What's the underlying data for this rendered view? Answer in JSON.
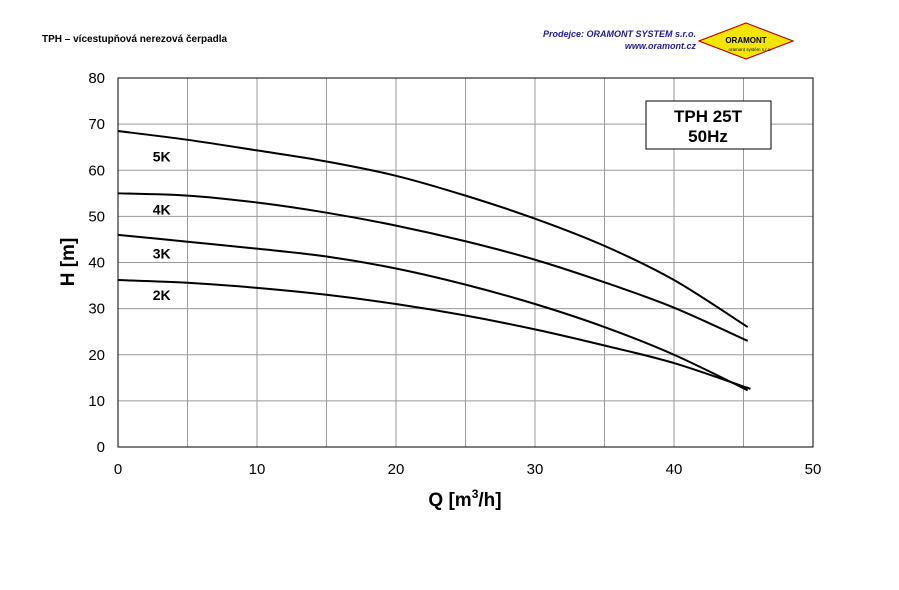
{
  "header": {
    "doc_title": "TPH – vícestupňová nerezová čerpadla",
    "dealer_prefix": "Prodejce:",
    "dealer_name": "ORAMONT SYSTEM s.r.o.",
    "dealer_web": "www.oramont.cz",
    "logo_text": "ORAMONT",
    "logo_subtext": "oramont systém s.r.o.",
    "logo_color": "#f2e600"
  },
  "chart_data": {
    "type": "line",
    "xlabel_main": "Q [m",
    "xlabel_sup": "3",
    "xlabel_tail": "/h]",
    "ylabel": "H [m]",
    "xlim": [
      0,
      50
    ],
    "ylim": [
      0,
      80
    ],
    "x_ticks": [
      0,
      10,
      20,
      30,
      40,
      50
    ],
    "y_ticks": [
      0,
      10,
      20,
      30,
      40,
      50,
      60,
      70,
      80
    ],
    "grid": true,
    "box_lines": [
      "TPH 25T",
      "50Hz"
    ],
    "series": [
      {
        "name": "5K",
        "label_at": [
          2.5,
          63
        ],
        "x": [
          0,
          5,
          10,
          15,
          20,
          25,
          30,
          35,
          40,
          45.3
        ],
        "y": [
          68.5,
          66.6,
          64.3,
          61.9,
          58.8,
          54.5,
          49.5,
          43.6,
          36.2,
          26
        ]
      },
      {
        "name": "4K",
        "label_at": [
          2.5,
          51.5
        ],
        "x": [
          0,
          5,
          10,
          15,
          20,
          25,
          30,
          35,
          40,
          45.3
        ],
        "y": [
          55,
          54.5,
          53,
          50.8,
          48,
          44.6,
          40.6,
          35.7,
          30.2,
          23
        ]
      },
      {
        "name": "3K",
        "label_at": [
          2.5,
          42
        ],
        "x": [
          0,
          5,
          10,
          15,
          20,
          25,
          30,
          35,
          40,
          45.3
        ],
        "y": [
          46,
          44.5,
          43,
          41.3,
          38.7,
          35.2,
          31,
          26,
          20,
          12.3
        ]
      },
      {
        "name": "2K",
        "label_at": [
          2.5,
          33
        ],
        "x": [
          0,
          5,
          10,
          15,
          20,
          25,
          30,
          35,
          40,
          45.5
        ],
        "y": [
          36.2,
          35.6,
          34.5,
          33,
          31,
          28.5,
          25.5,
          22,
          18.2,
          12.6
        ]
      }
    ]
  }
}
